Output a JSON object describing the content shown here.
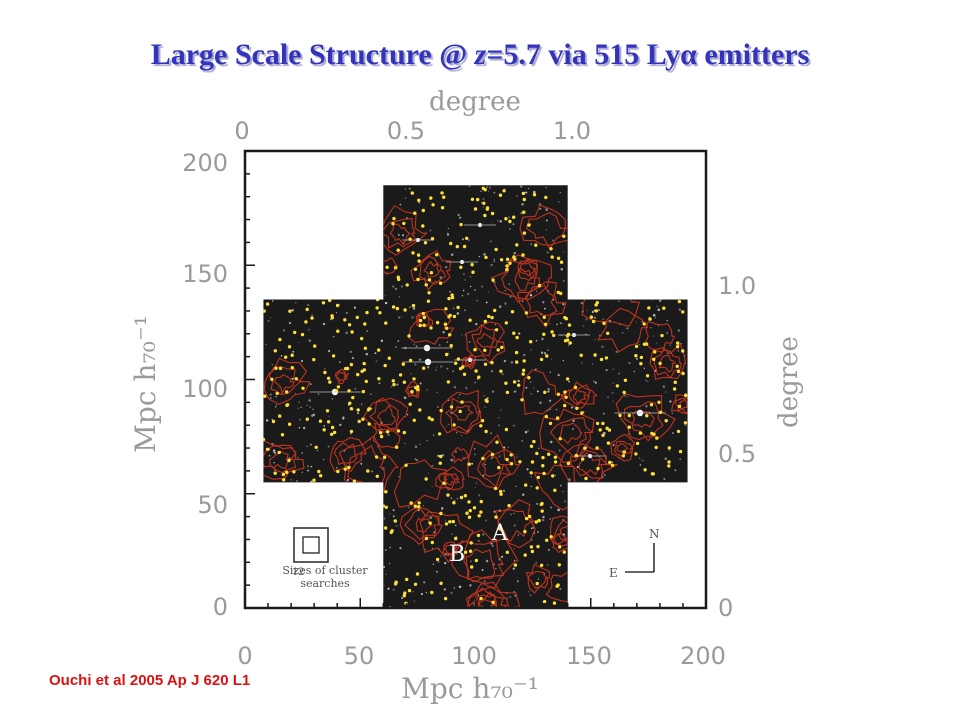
{
  "slide": {
    "title_prefix": "Large Scale Structure @ ",
    "title_z": "z",
    "title_suffix": "=5.7 via 515 Lyα emitters",
    "citation": "Ouchi et al 2005 Ap J 620 L1"
  },
  "chart_data": {
    "type": "scatter",
    "title": "",
    "xlabel": "Mpc h₇₀⁻¹",
    "ylabel": "Mpc h₇₀⁻¹",
    "top_axis_label": "degree",
    "right_axis_label": "degree",
    "xlim": [
      0,
      200
    ],
    "ylim": [
      0,
      200
    ],
    "x_ticks": [
      "0",
      "50",
      "100",
      "150",
      "200"
    ],
    "y_ticks": [
      "0",
      "50",
      "100",
      "150",
      "200"
    ],
    "top_ticks": [
      {
        "value": 0,
        "label": "0"
      },
      {
        "value": 0.5,
        "label": "0.5"
      },
      {
        "value": 1.0,
        "label": "1.0"
      }
    ],
    "right_ticks": [
      {
        "value": 0,
        "label": "0"
      },
      {
        "value": 0.5,
        "label": "0.5"
      },
      {
        "value": 1.0,
        "label": "1.0"
      }
    ],
    "survey_field_shape": "cross",
    "survey_field_regions_mpc": [
      {
        "x": [
          60,
          140
        ],
        "y": [
          0,
          185
        ]
      },
      {
        "x": [
          8,
          192
        ],
        "y": [
          55,
          135
        ]
      }
    ],
    "series": [
      {
        "marker": "yellow dot",
        "point_count": 515,
        "color": "#ffe135"
      }
    ],
    "overlays": [
      {
        "type": "density contours",
        "color": "#c0321e"
      }
    ],
    "annotations": [
      {
        "label": "A",
        "x": 112,
        "y": 30
      },
      {
        "label": "B",
        "x": 95,
        "y": 22
      }
    ],
    "inset_box_label": "Sizes of cluster searches",
    "inset_box_small_markers": [
      "1",
      "2"
    ],
    "compass": {
      "north": "N",
      "east": "E"
    }
  },
  "colors": {
    "title": "#3333bb",
    "citation": "#dd1111",
    "field_background": "#1a1a1a",
    "emitters": "#ffe135",
    "contours": "#c0321e",
    "axis": "#9a9a9a"
  }
}
